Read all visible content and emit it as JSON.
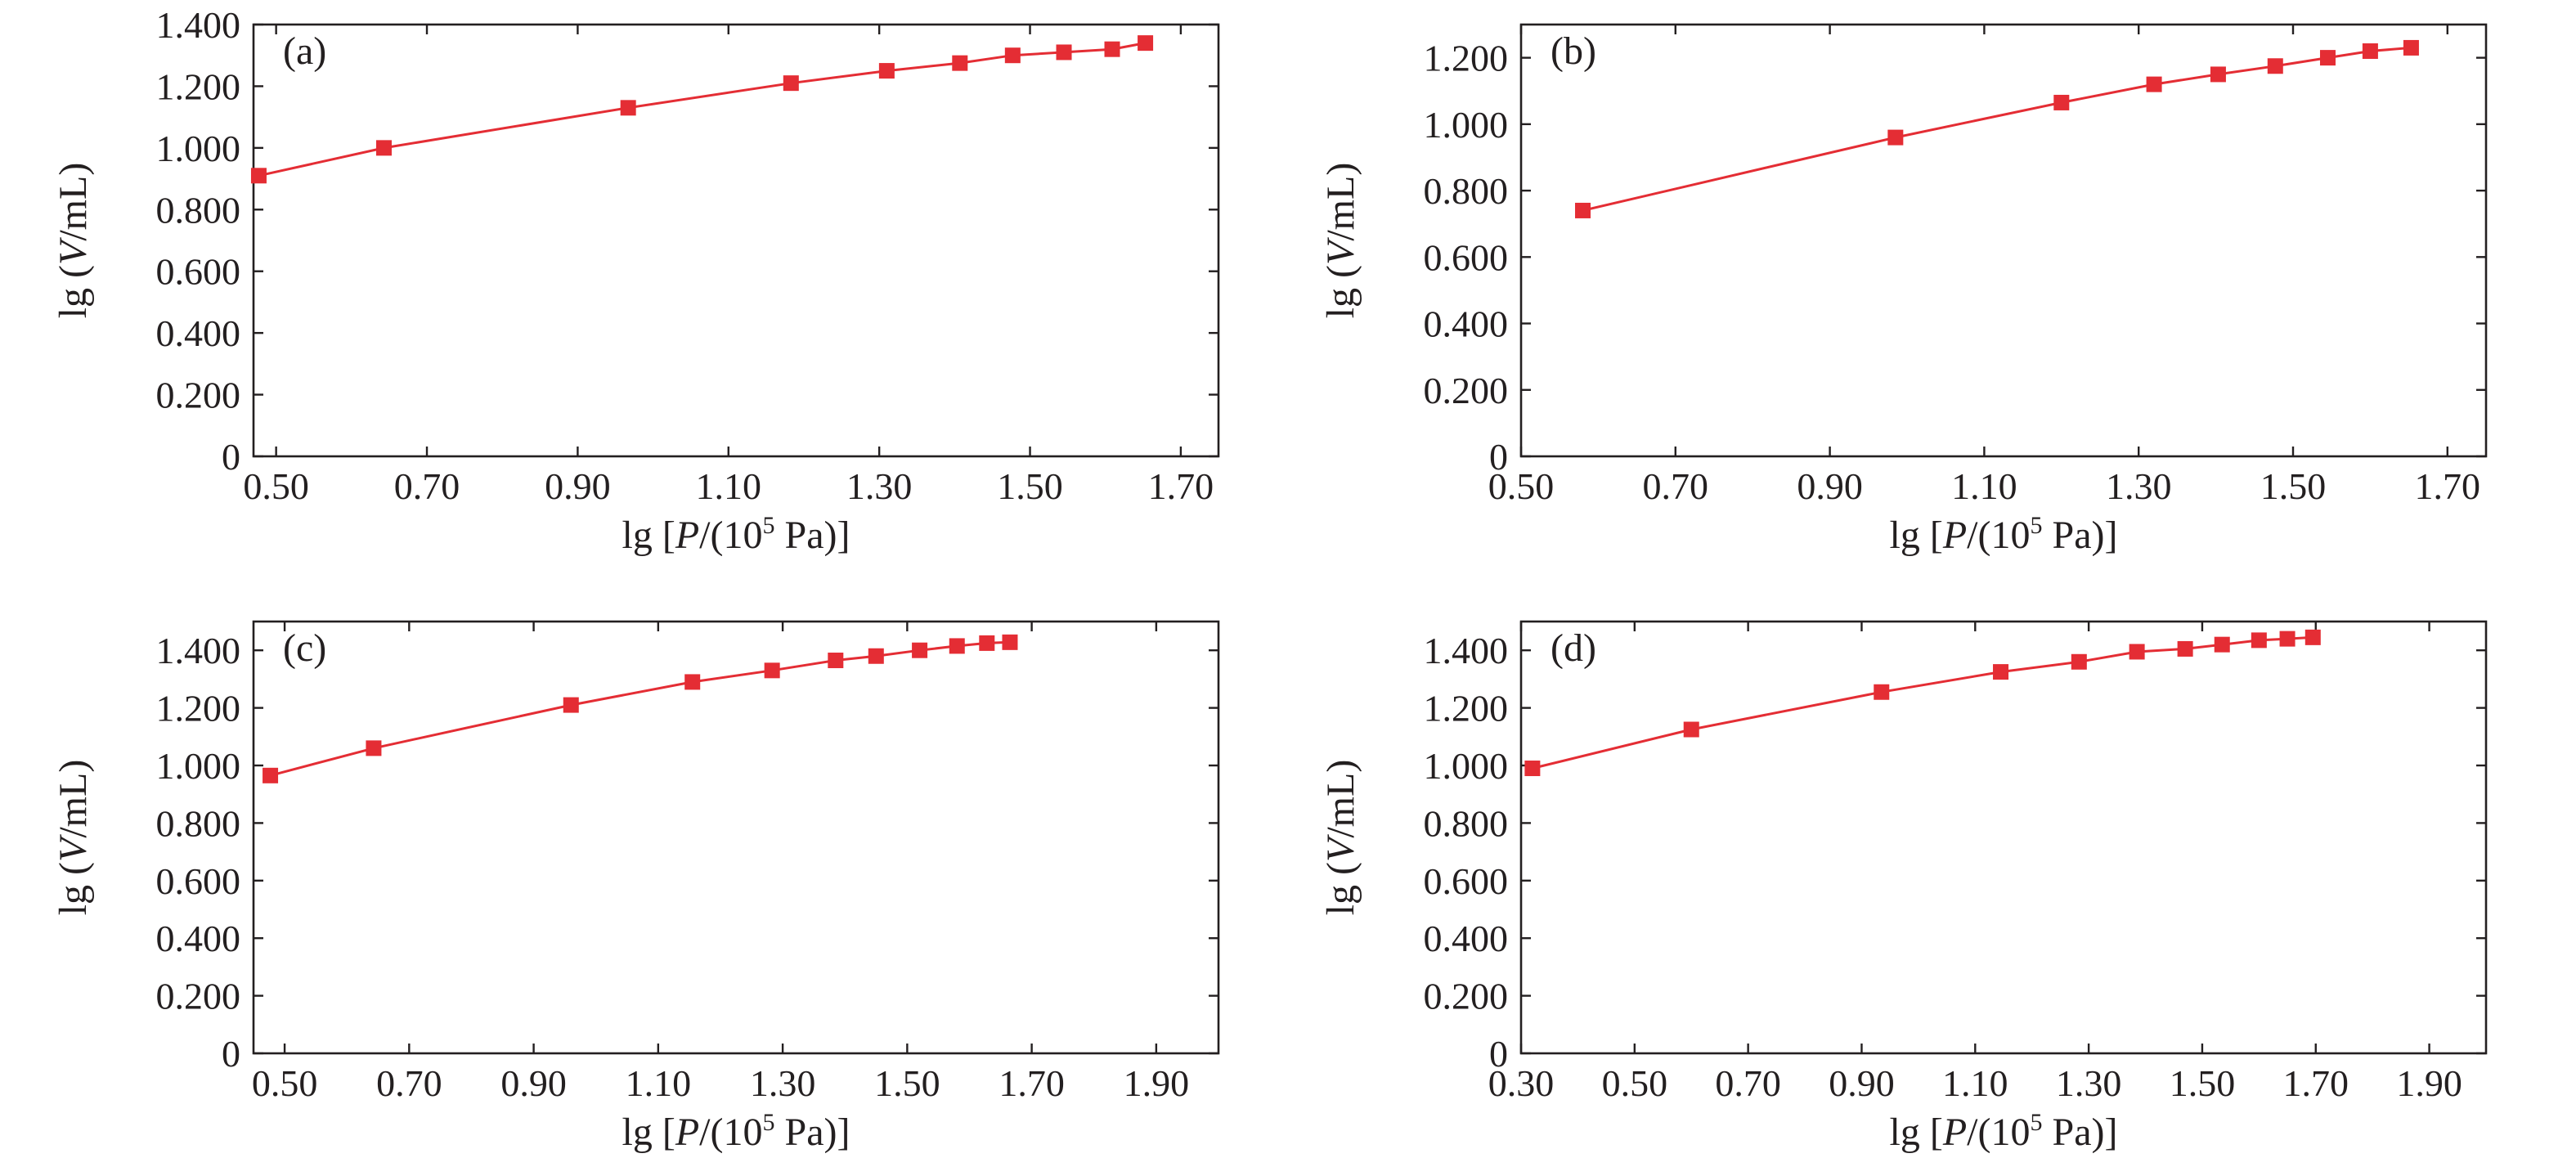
{
  "colors": {
    "series": "#e42d34",
    "axis": "#231f20",
    "background": "#ffffff"
  },
  "chart_data": [
    {
      "type": "line",
      "panel_label": "(a)",
      "xlabel": {
        "pre": "lg [",
        "var": "P",
        "mid": "/(10",
        "sup": "5",
        "post": " Pa)]"
      },
      "ylabel": {
        "pre": "lg (",
        "var": "V",
        "post": "/mL)"
      },
      "xlim": [
        0.47,
        1.75
      ],
      "ylim": [
        0,
        1.4
      ],
      "xticks": [
        0.5,
        0.7,
        0.9,
        1.1,
        1.3,
        1.5,
        1.7
      ],
      "xtick_labels": [
        "0.50",
        "0.70",
        "0.90",
        "1.10",
        "1.30",
        "1.50",
        "1.70"
      ],
      "yticks": [
        0,
        0.2,
        0.4,
        0.6,
        0.8,
        1.0,
        1.2,
        1.4
      ],
      "ytick_labels": [
        "0",
        "0.200",
        "0.400",
        "0.600",
        "0.800",
        "1.000",
        "1.200",
        "1.400"
      ],
      "grid": false,
      "marker": "square",
      "series": [
        {
          "x": [
            0.477,
            0.643,
            0.967,
            1.183,
            1.31,
            1.407,
            1.477,
            1.545,
            1.609,
            1.653
          ],
          "y": [
            0.91,
            1.0,
            1.13,
            1.21,
            1.25,
            1.275,
            1.3,
            1.31,
            1.32,
            1.34
          ]
        }
      ]
    },
    {
      "type": "line",
      "panel_label": "(b)",
      "xlabel": {
        "pre": "lg [",
        "var": "P",
        "mid": "/(10",
        "sup": "5",
        "post": " Pa)]"
      },
      "ylabel": {
        "pre": "lg (",
        "var": "V",
        "post": "/mL)"
      },
      "xlim": [
        0.5,
        1.75
      ],
      "ylim": [
        0,
        1.3
      ],
      "xticks": [
        0.5,
        0.7,
        0.9,
        1.1,
        1.3,
        1.5,
        1.7
      ],
      "xtick_labels": [
        "0.50",
        "0.70",
        "0.90",
        "1.10",
        "1.30",
        "1.50",
        "1.70"
      ],
      "yticks": [
        0,
        0.2,
        0.4,
        0.6,
        0.8,
        1.0,
        1.2
      ],
      "ytick_labels": [
        "0",
        "0.200",
        "0.400",
        "0.600",
        "0.800",
        "1.000",
        "1.200"
      ],
      "grid": false,
      "marker": "square",
      "series": [
        {
          "x": [
            0.58,
            0.985,
            1.2,
            1.32,
            1.403,
            1.477,
            1.545,
            1.6,
            1.653
          ],
          "y": [
            0.74,
            0.96,
            1.065,
            1.12,
            1.15,
            1.175,
            1.2,
            1.22,
            1.23
          ]
        }
      ]
    },
    {
      "type": "line",
      "panel_label": "(c)",
      "xlabel": {
        "pre": "lg [",
        "var": "P",
        "mid": "/(10",
        "sup": "5",
        "post": " Pa)]"
      },
      "ylabel": {
        "pre": "lg (",
        "var": "V",
        "post": "/mL)"
      },
      "xlim": [
        0.45,
        2.0
      ],
      "ylim": [
        0,
        1.5
      ],
      "xticks": [
        0.5,
        0.7,
        0.9,
        1.1,
        1.3,
        1.5,
        1.7,
        1.9
      ],
      "xtick_labels": [
        "0.50",
        "0.70",
        "0.90",
        "1.10",
        "1.30",
        "1.50",
        "1.70",
        "1.90"
      ],
      "yticks": [
        0,
        0.2,
        0.4,
        0.6,
        0.8,
        1.0,
        1.2,
        1.4
      ],
      "ytick_labels": [
        "0",
        "0.200",
        "0.400",
        "0.600",
        "0.800",
        "1.000",
        "1.200",
        "1.400"
      ],
      "grid": false,
      "marker": "square",
      "series": [
        {
          "x": [
            0.477,
            0.643,
            0.96,
            1.155,
            1.283,
            1.385,
            1.45,
            1.52,
            1.58,
            1.628,
            1.665
          ],
          "y": [
            0.965,
            1.06,
            1.21,
            1.29,
            1.33,
            1.365,
            1.38,
            1.4,
            1.415,
            1.425,
            1.428
          ]
        }
      ]
    },
    {
      "type": "line",
      "panel_label": "(d)",
      "xlabel": {
        "pre": "lg [",
        "var": "P",
        "mid": "/(10",
        "sup": "5",
        "post": " Pa)]"
      },
      "ylabel": {
        "pre": "lg (",
        "var": "V",
        "post": "/mL)"
      },
      "xlim": [
        0.3,
        2.0
      ],
      "ylim": [
        0,
        1.5
      ],
      "xticks": [
        0.3,
        0.5,
        0.7,
        0.9,
        1.1,
        1.3,
        1.5,
        1.7,
        1.9
      ],
      "xtick_labels": [
        "0.30",
        "0.50",
        "0.70",
        "0.90",
        "1.10",
        "1.30",
        "1.50",
        "1.70",
        "1.90"
      ],
      "yticks": [
        0,
        0.2,
        0.4,
        0.6,
        0.8,
        1.0,
        1.2,
        1.4
      ],
      "ytick_labels": [
        "0",
        "0.200",
        "0.400",
        "0.600",
        "0.800",
        "1.000",
        "1.200",
        "1.400"
      ],
      "grid": false,
      "marker": "square",
      "series": [
        {
          "x": [
            0.32,
            0.6,
            0.935,
            1.145,
            1.283,
            1.385,
            1.47,
            1.535,
            1.6,
            1.65,
            1.695
          ],
          "y": [
            0.99,
            1.125,
            1.255,
            1.325,
            1.36,
            1.395,
            1.405,
            1.42,
            1.435,
            1.44,
            1.445
          ]
        }
      ]
    }
  ]
}
